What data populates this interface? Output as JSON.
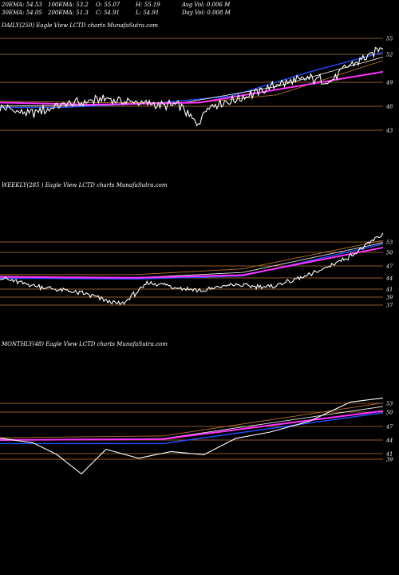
{
  "header": {
    "row1": [
      "20EMA: 54.53",
      "100EMA: 53.2",
      "O: 55.07",
      "H: 55.19",
      "Avg Vol: 0.006  M"
    ],
    "row2": [
      "30EMA: 54.05",
      "200EMA: 51.3",
      "C: 54.91",
      "L: 54.91",
      "Day Vol: 0.008 M"
    ]
  },
  "colors": {
    "background": "#000000",
    "price": "#ffffff",
    "ema_blue": "#2050ff",
    "ema_magenta": "#ff33ff",
    "ema_brown": "#b07030",
    "ema_white": "#e0e0e0",
    "gridline": "#c07838"
  },
  "chart_data": [
    {
      "type": "line",
      "title": "DAILY(250) Eagle   View  LCTD charts MunafaSutra.com",
      "y_ticks": [
        "55",
        "52",
        "49",
        "46",
        "43"
      ],
      "ylim": [
        41,
        57
      ],
      "n_points": 250,
      "series": [
        {
          "role": "price",
          "start": 46.3,
          "end": 54.9,
          "anchors": [
            [
              0,
              46.2
            ],
            [
              20,
              45.3
            ],
            [
              40,
              46.6
            ],
            [
              70,
              47.4
            ],
            [
              100,
              46.6
            ],
            [
              118,
              46.4
            ],
            [
              128,
              43.6
            ],
            [
              135,
              46.5
            ],
            [
              150,
              47.1
            ],
            [
              165,
              48.2
            ],
            [
              180,
              49.5
            ],
            [
              200,
              50.3
            ],
            [
              215,
              50.1
            ],
            [
              225,
              52.0
            ],
            [
              240,
              53.6
            ],
            [
              249,
              54.9
            ]
          ]
        },
        {
          "role": "ema",
          "color": "blue",
          "anchors": [
            [
              0,
              46.2
            ],
            [
              40,
              46.2
            ],
            [
              100,
              46.8
            ],
            [
              150,
              47.8
            ],
            [
              200,
              51.2
            ],
            [
              249,
              54.1
            ]
          ]
        },
        {
          "role": "ema",
          "color": "white",
          "anchors": [
            [
              0,
              46.4
            ],
            [
              60,
              46.5
            ],
            [
              120,
              46.9
            ],
            [
              180,
              49.2
            ],
            [
              249,
              53.4
            ]
          ]
        },
        {
          "role": "ema",
          "color": "brown",
          "anchors": [
            [
              0,
              47.1
            ],
            [
              60,
              46.9
            ],
            [
              130,
              46.9
            ],
            [
              180,
              48.0
            ],
            [
              249,
              52.9
            ]
          ]
        },
        {
          "role": "ema",
          "color": "magenta",
          "anchors": [
            [
              0,
              46.9
            ],
            [
              60,
              46.6
            ],
            [
              130,
              46.9
            ],
            [
              249,
              51.3
            ]
          ]
        }
      ]
    },
    {
      "type": "line",
      "title": "WEEKLY(285                    ) Eagle   View  LCTD charts MunafaSutra.com",
      "y_ticks": [
        "53",
        "50",
        "47",
        "44",
        "41",
        "39",
        "37"
      ],
      "ylim": [
        36,
        54
      ],
      "n_points": 285,
      "series": [
        {
          "role": "price",
          "anchors": [
            [
              0,
              43.6
            ],
            [
              30,
              41.5
            ],
            [
              60,
              40.2
            ],
            [
              90,
              37.5
            ],
            [
              110,
              42.5
            ],
            [
              150,
              40.6
            ],
            [
              170,
              42.0
            ],
            [
              200,
              41.5
            ],
            [
              230,
              44.2
            ],
            [
              260,
              48.5
            ],
            [
              284,
              53.5
            ]
          ]
        },
        {
          "role": "ema",
          "color": "blue",
          "anchors": [
            [
              0,
              43.5
            ],
            [
              100,
              43.3
            ],
            [
              180,
              44.0
            ],
            [
              284,
              51.2
            ]
          ]
        },
        {
          "role": "ema",
          "color": "white",
          "anchors": [
            [
              0,
              43.9
            ],
            [
              100,
              43.6
            ],
            [
              180,
              44.8
            ],
            [
              284,
              51.5
            ]
          ]
        },
        {
          "role": "ema",
          "color": "brown",
          "anchors": [
            [
              0,
              44.3
            ],
            [
              100,
              44.3
            ],
            [
              180,
              45.6
            ],
            [
              284,
              52.0
            ]
          ]
        },
        {
          "role": "ema",
          "color": "magenta",
          "anchors": [
            [
              0,
              43.8
            ],
            [
              100,
              43.6
            ],
            [
              180,
              44.2
            ],
            [
              284,
              50.4
            ]
          ]
        }
      ]
    },
    {
      "type": "line",
      "title": "MONTHLY(48) Eagle   View  LCTD charts MunafaSutra.com",
      "y_ticks": [
        "53",
        "50",
        "47",
        "44",
        "41",
        "39"
      ],
      "ylim": [
        38,
        55
      ],
      "n_points": 48,
      "series": [
        {
          "role": "price",
          "anchors": [
            [
              0,
              44.5
            ],
            [
              4,
              43.5
            ],
            [
              7,
              40.8
            ],
            [
              10,
              36.5
            ],
            [
              13,
              42.0
            ],
            [
              17,
              40.0
            ],
            [
              21,
              41.5
            ],
            [
              25,
              40.8
            ],
            [
              29,
              44.5
            ],
            [
              33,
              45.8
            ],
            [
              38,
              48.3
            ],
            [
              43,
              52.6
            ],
            [
              47,
              53.5
            ]
          ]
        },
        {
          "role": "ema",
          "color": "blue",
          "anchors": [
            [
              0,
              43.3
            ],
            [
              20,
              43.3
            ],
            [
              47,
              50.2
            ]
          ]
        },
        {
          "role": "ema",
          "color": "white",
          "anchors": [
            [
              0,
              44.0
            ],
            [
              20,
              44.4
            ],
            [
              47,
              51.6
            ]
          ]
        },
        {
          "role": "ema",
          "color": "brown",
          "anchors": [
            [
              0,
              44.6
            ],
            [
              20,
              45.0
            ],
            [
              47,
              52.4
            ]
          ]
        },
        {
          "role": "ema",
          "color": "magenta",
          "anchors": [
            [
              0,
              44.1
            ],
            [
              20,
              44.3
            ],
            [
              47,
              50.6
            ]
          ]
        }
      ]
    }
  ]
}
